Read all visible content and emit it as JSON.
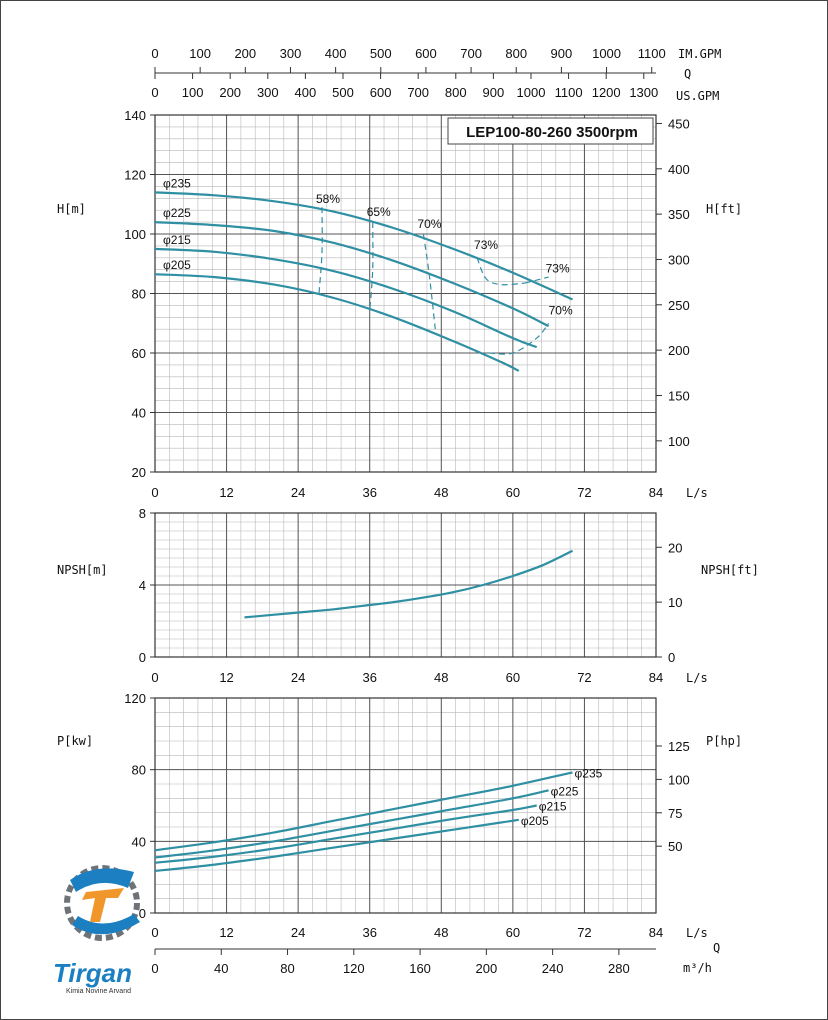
{
  "colors": {
    "curve": "#2f8fa3",
    "grid_major": "#555555",
    "grid_minor": "#b8b8b8",
    "logo_blue": "#1b7fc1",
    "logo_orange": "#f0962a",
    "logo_gray": "#6f7378"
  },
  "top_scale": {
    "im_gpm": {
      "unit": "IM.GPM",
      "ticks": [
        0,
        100,
        200,
        300,
        400,
        500,
        600,
        700,
        800,
        900,
        1000,
        1100
      ]
    },
    "q_label": "Q",
    "us_gpm": {
      "unit": "US.GPM",
      "ticks": [
        0,
        100,
        200,
        300,
        400,
        500,
        600,
        700,
        800,
        900,
        1000,
        1100,
        1200,
        1300
      ]
    }
  },
  "bottom_scale": {
    "q_label": "Q",
    "unit": "m³/h",
    "ticks": [
      0,
      40,
      80,
      120,
      160,
      200,
      240,
      280
    ]
  },
  "logo": {
    "name": "Tirgan",
    "subtitle": "Kimia Novine Arvand"
  },
  "chart_data": [
    {
      "type": "line",
      "title": "LEP100-80-260 3500rpm",
      "xlabel": "L/s",
      "ylabel": "H[m]",
      "ylabel_right": "H[ft]",
      "xlim": [
        0,
        84
      ],
      "ylim": [
        20,
        140
      ],
      "x_ticks": [
        0,
        12,
        24,
        36,
        48,
        60,
        72,
        84
      ],
      "y_ticks": [
        20,
        40,
        60,
        80,
        100,
        120,
        140
      ],
      "y_right_ticks": [
        100,
        150,
        200,
        250,
        300,
        350,
        400,
        450
      ],
      "grid": true,
      "series": [
        {
          "name": "φ235",
          "x": [
            0,
            10,
            20,
            30,
            40,
            50,
            60,
            70
          ],
          "y": [
            114,
            113,
            111,
            107.5,
            102,
            95,
            87,
            78
          ]
        },
        {
          "name": "φ225",
          "x": [
            0,
            10,
            20,
            30,
            40,
            50,
            60,
            66
          ],
          "y": [
            104,
            103,
            101,
            97,
            91,
            83.5,
            75,
            69
          ]
        },
        {
          "name": "φ215",
          "x": [
            0,
            10,
            20,
            30,
            40,
            50,
            60,
            64
          ],
          "y": [
            95,
            94,
            91.5,
            87.5,
            81.5,
            74,
            65,
            62
          ]
        },
        {
          "name": "φ205",
          "x": [
            0,
            10,
            20,
            30,
            40,
            50,
            58,
            61
          ],
          "y": [
            86.5,
            85.5,
            83,
            78.5,
            72,
            64,
            57,
            54
          ]
        }
      ],
      "efficiency_lines": [
        {
          "name": "58%",
          "x": [
            28,
            28,
            27.5
          ],
          "y": [
            109,
            94,
            80
          ]
        },
        {
          "name": "65%",
          "x": [
            36.5,
            36.5,
            36
          ],
          "y": [
            104,
            88,
            74
          ]
        },
        {
          "name": "70%",
          "x": [
            45,
            46,
            47
          ],
          "y": [
            100,
            86,
            68
          ]
        },
        {
          "name": "73%",
          "x": [
            54,
            55.5,
            58,
            62
          ],
          "y": [
            92,
            85,
            83,
            83.5
          ]
        },
        {
          "name": "73%",
          "x": [
            62,
            66
          ],
          "y": [
            83.5,
            85.5
          ]
        },
        {
          "name": "70%",
          "x": [
            56,
            60,
            64,
            66
          ],
          "y": [
            60,
            60,
            65,
            70
          ]
        }
      ]
    },
    {
      "type": "line",
      "xlabel": "L/s",
      "ylabel": "NPSH[m]",
      "ylabel_right": "NPSH[ft]",
      "xlim": [
        0,
        84
      ],
      "ylim": [
        0,
        8
      ],
      "x_ticks": [
        0,
        12,
        24,
        36,
        48,
        60,
        72,
        84
      ],
      "y_ticks": [
        0,
        4,
        8
      ],
      "y_right_ticks": [
        0,
        10,
        20
      ],
      "grid": true,
      "series": [
        {
          "x": [
            15,
            20,
            25,
            30,
            35,
            40,
            45,
            50,
            55,
            60,
            65,
            70
          ],
          "y": [
            2.2,
            2.35,
            2.5,
            2.65,
            2.85,
            3.05,
            3.3,
            3.6,
            4.0,
            4.5,
            5.1,
            5.9
          ]
        }
      ]
    },
    {
      "type": "line",
      "xlabel": "L/s",
      "ylabel": "P[kw]",
      "ylabel_right": "P[hp]",
      "xlim": [
        0,
        84
      ],
      "ylim": [
        0,
        120
      ],
      "x_ticks": [
        0,
        12,
        24,
        36,
        48,
        60,
        72,
        84
      ],
      "y_ticks": [
        0,
        40,
        80,
        120
      ],
      "y_right_ticks": [
        50,
        75,
        100,
        125
      ],
      "grid": true,
      "series": [
        {
          "name": "φ235",
          "x": [
            0,
            10,
            20,
            30,
            40,
            50,
            60,
            70
          ],
          "y": [
            35,
            39.5,
            45,
            51.5,
            58,
            64.5,
            71,
            78.5
          ]
        },
        {
          "name": "φ225",
          "x": [
            0,
            10,
            20,
            30,
            40,
            50,
            60,
            66
          ],
          "y": [
            31,
            35,
            40,
            46,
            52,
            58,
            64,
            68.5
          ]
        },
        {
          "name": "φ215",
          "x": [
            0,
            10,
            20,
            30,
            40,
            50,
            60,
            64
          ],
          "y": [
            28,
            31.5,
            36,
            41.5,
            47,
            52.5,
            57.5,
            60
          ]
        },
        {
          "name": "φ205",
          "x": [
            0,
            10,
            20,
            30,
            40,
            50,
            58,
            61
          ],
          "y": [
            23.5,
            27,
            31.5,
            36.5,
            41.5,
            46.5,
            50.5,
            52
          ]
        }
      ]
    }
  ]
}
